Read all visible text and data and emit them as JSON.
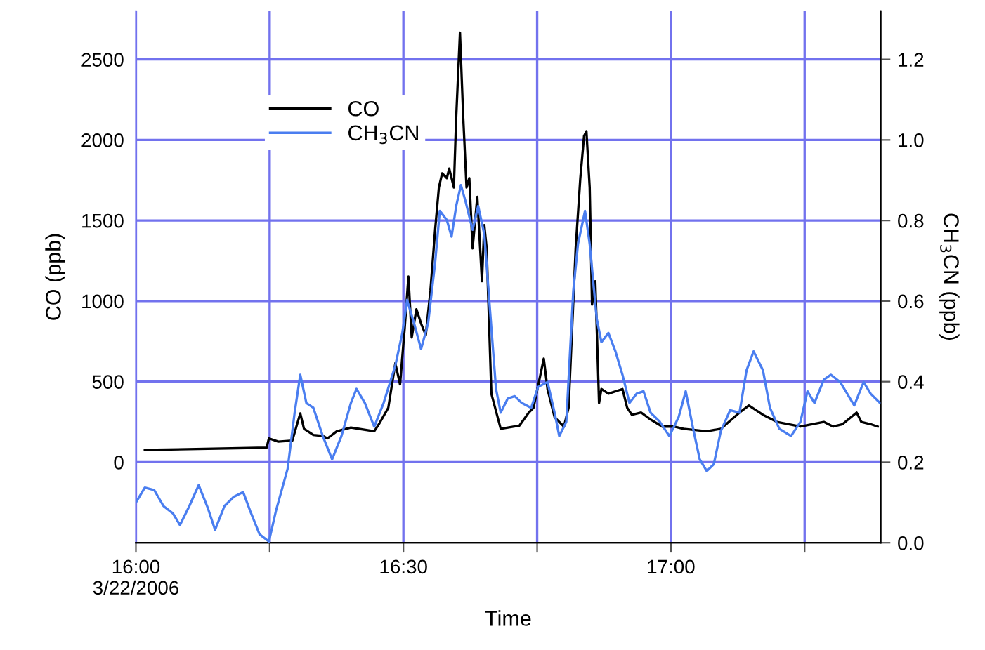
{
  "chart_data": {
    "type": "line",
    "xlabel": "Time",
    "ylabel": "CO (ppb)",
    "y2label": "CH$_{3}$CN (ppb)",
    "xlim": [
      16.0,
      17.392
    ],
    "xticks": [
      {
        "value": 16,
        "label": "16:00\n3/22/2006"
      },
      {
        "value": 16.25,
        "label": null
      },
      {
        "value": 16.5,
        "label": "16:30"
      },
      {
        "value": 16.75,
        "label": null
      },
      {
        "value": 17,
        "label": "17:00"
      },
      {
        "value": 17.25,
        "label": null
      }
    ],
    "ylim": [
      -500,
      2800
    ],
    "yticks": [
      0,
      500,
      1000,
      1500,
      2000,
      2500
    ],
    "y2lim": [
      0.0,
      1.32
    ],
    "y2ticks": [
      {
        "value": 0,
        "label": "0.0"
      },
      0.2,
      0.4,
      0.6,
      0.8,
      {
        "value": 1,
        "label": "1.0"
      },
      1.2
    ],
    "grid": true,
    "legend": "top left",
    "series": [
      {
        "name": "CO",
        "color": "#000000",
        "x": [
          16.0166,
          16.2442,
          16.2486,
          16.2661,
          16.2923,
          16.3072,
          16.3142,
          16.3317,
          16.3492,
          16.358,
          16.3755,
          16.4018,
          16.4455,
          16.4543,
          16.4718,
          16.4849,
          16.4937,
          16.5024,
          16.5094,
          16.5155,
          16.5243,
          16.533,
          16.5418,
          16.5505,
          16.5593,
          16.5663,
          16.5724,
          16.5812,
          16.5856,
          16.5943,
          16.5987,
          16.6057,
          16.6118,
          16.618,
          16.6232,
          16.6293,
          16.6381,
          16.6468,
          16.6512,
          16.6556,
          16.6644,
          16.6819,
          16.7169,
          16.7344,
          16.7432,
          16.7624,
          16.7694,
          16.7826,
          16.8001,
          16.8088,
          16.822,
          16.8307,
          16.8377,
          16.8421,
          16.8482,
          16.8526,
          16.8587,
          16.8657,
          16.8701,
          16.8832,
          16.9095,
          16.9183,
          16.927,
          16.9445,
          16.962,
          16.9839,
          17.0058,
          17.0233,
          17.0671,
          17.0933,
          17.1283,
          17.1458,
          17.1721,
          17.1983,
          17.2421,
          17.264,
          17.2859,
          17.3034,
          17.3209,
          17.3472,
          17.3559,
          17.3734,
          17.3865
        ],
        "values": [
          76,
          90,
          148,
          128,
          134,
          303,
          207,
          169,
          163,
          148,
          192,
          215,
          192,
          236,
          338,
          614,
          483,
          832,
          1152,
          774,
          949,
          861,
          789,
          1065,
          1443,
          1705,
          1793,
          1763,
          1822,
          1705,
          2142,
          2666,
          2142,
          1705,
          1763,
          1327,
          1647,
          1123,
          1472,
          1327,
          425,
          207,
          227,
          308,
          338,
          643,
          454,
          279,
          221,
          338,
          1327,
          1763,
          2025,
          2054,
          1705,
          978,
          1123,
          367,
          454,
          425,
          454,
          338,
          294,
          308,
          265,
          221,
          221,
          207,
          192,
          207,
          308,
          352,
          294,
          250,
          221,
          236,
          250,
          221,
          236,
          308,
          250,
          236,
          221
        ]
      },
      {
        "name": "CH$_{3}$CN",
        "color": "#4a7ef0",
        "axis": "y2",
        "x": [
          16.0009,
          16.0166,
          16.0341,
          16.0516,
          16.0692,
          16.0823,
          16.0998,
          16.1173,
          16.1348,
          16.1479,
          16.1654,
          16.1829,
          16.2004,
          16.2136,
          16.2311,
          16.2486,
          16.2617,
          16.2836,
          16.2967,
          16.3072,
          16.3186,
          16.3317,
          16.3492,
          16.3667,
          16.3842,
          16.4018,
          16.4123,
          16.428,
          16.4455,
          16.463,
          16.4849,
          16.498,
          16.5068,
          16.5199,
          16.533,
          16.5462,
          16.5593,
          16.568,
          16.5812,
          16.59,
          16.5987,
          16.6075,
          16.6162,
          16.6293,
          16.6398,
          16.6512,
          16.6644,
          16.6731,
          16.6819,
          16.695,
          16.7081,
          16.7213,
          16.7388,
          16.7519,
          16.7694,
          16.7826,
          16.7913,
          16.8045,
          16.8176,
          16.8264,
          16.8395,
          16.8482,
          16.8614,
          16.8701,
          16.8832,
          16.8964,
          16.9095,
          16.9226,
          16.9358,
          16.9489,
          16.962,
          16.9795,
          16.997,
          17.0145,
          17.0277,
          17.0408,
          17.0539,
          17.0671,
          17.0802,
          17.0933,
          17.1108,
          17.1283,
          17.1414,
          17.1546,
          17.1721,
          17.1852,
          17.2027,
          17.2246,
          17.2421,
          17.2553,
          17.2684,
          17.2859,
          17.299,
          17.3165,
          17.3428,
          17.3603,
          17.3734,
          17.3909
        ],
        "values": [
          0.102,
          0.137,
          0.131,
          0.091,
          0.073,
          0.044,
          0.091,
          0.143,
          0.085,
          0.032,
          0.091,
          0.114,
          0.126,
          0.079,
          0.021,
          0.003,
          0.079,
          0.184,
          0.323,
          0.417,
          0.347,
          0.335,
          0.265,
          0.207,
          0.265,
          0.347,
          0.382,
          0.347,
          0.288,
          0.347,
          0.44,
          0.521,
          0.603,
          0.545,
          0.481,
          0.545,
          0.696,
          0.824,
          0.801,
          0.76,
          0.836,
          0.888,
          0.847,
          0.777,
          0.836,
          0.766,
          0.533,
          0.382,
          0.323,
          0.358,
          0.364,
          0.347,
          0.335,
          0.387,
          0.399,
          0.323,
          0.265,
          0.3,
          0.626,
          0.742,
          0.824,
          0.742,
          0.556,
          0.498,
          0.521,
          0.475,
          0.417,
          0.347,
          0.37,
          0.376,
          0.323,
          0.3,
          0.265,
          0.312,
          0.376,
          0.288,
          0.207,
          0.178,
          0.195,
          0.277,
          0.329,
          0.323,
          0.428,
          0.475,
          0.428,
          0.335,
          0.283,
          0.265,
          0.3,
          0.376,
          0.347,
          0.405,
          0.417,
          0.399,
          0.341,
          0.399,
          0.37,
          0.347
        ]
      }
    ]
  }
}
